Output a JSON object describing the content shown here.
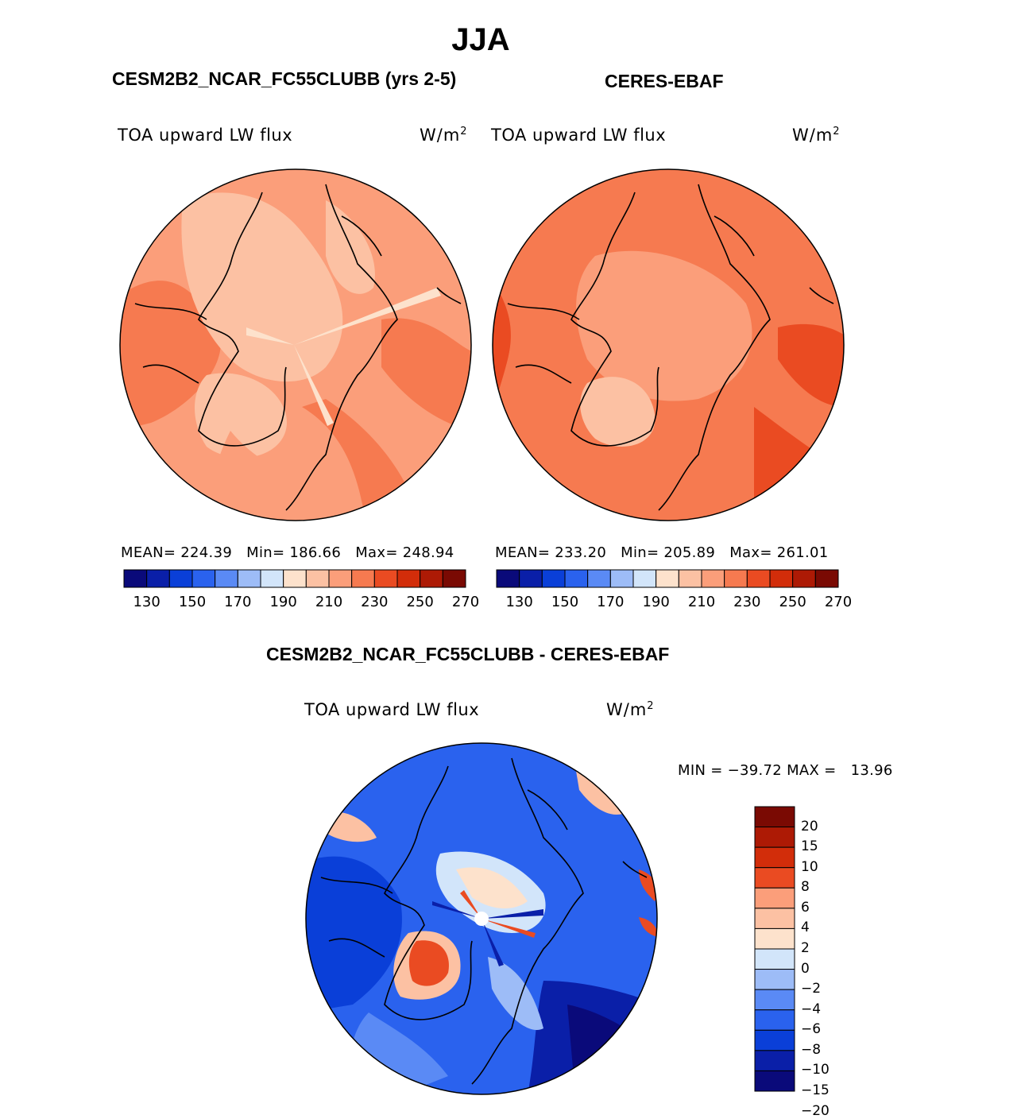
{
  "season": "JJA",
  "units_text": "W/m",
  "units_sup": "2",
  "panels": {
    "model": {
      "title": "CESM2B2_NCAR_FC55CLUBB (yrs 2-5)",
      "field": "TOA upward LW flux",
      "stats": "MEAN= 224.39   Min= 186.66   Max= 248.94"
    },
    "obs": {
      "title": "CERES-EBAF",
      "field": "TOA upward LW flux",
      "stats": "MEAN= 233.20   Min= 205.89   Max= 261.01"
    },
    "diff": {
      "title": "CESM2B2_NCAR_FC55CLUBB - CERES-EBAF",
      "field": "TOA upward LW flux",
      "stats": "MIN = −39.72 MAX =   13.96"
    }
  },
  "colorbar_abs": {
    "colors": [
      "#0a0a7a",
      "#0a1fa8",
      "#0a3fd8",
      "#2a62ee",
      "#5a8af5",
      "#9dbcf7",
      "#d2e5fa",
      "#fde2cc",
      "#fcc1a3",
      "#fb9e7a",
      "#f67a50",
      "#ea4b22",
      "#d22d0a",
      "#ad1a05",
      "#7a0a03"
    ],
    "labels": [
      "130",
      "150",
      "170",
      "190",
      "210",
      "230",
      "250",
      "270"
    ]
  },
  "colorbar_diff": {
    "colors": [
      "#7a0a03",
      "#ad1a05",
      "#d22d0a",
      "#ea4b22",
      "#fb9e7a",
      "#fcc1a3",
      "#fde2cc",
      "#d2e5fa",
      "#9dbcf7",
      "#5a8af5",
      "#2a62ee",
      "#0a3fd8",
      "#0a1fa8",
      "#0a0a7a"
    ],
    "labels": [
      "20",
      "15",
      "10",
      "8",
      "6",
      "4",
      "2",
      "0",
      "−2",
      "−4",
      "−6",
      "−8",
      "−10",
      "−15",
      "−20"
    ]
  }
}
